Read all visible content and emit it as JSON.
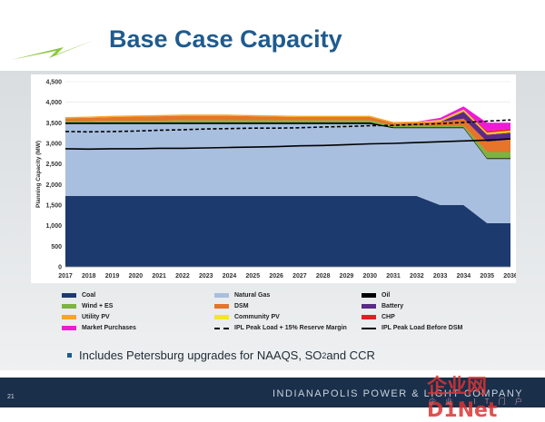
{
  "slide": {
    "title": "Base Case Capacity",
    "bullet": "Includes Petersburg upgrades for NAAQS, SO",
    "bullet_sub": "2",
    "bullet_end": " and CCR",
    "page_number": "21",
    "company": "INDIANAPOLIS POWER & LIGHT COMPANY",
    "logo_icon": "lightning-bolt-icon",
    "logo_mark": "®",
    "watermark": "企业网D1Net",
    "watermark_sub": "企 业 · I T 门 户"
  },
  "chart_data": {
    "type": "area",
    "ylabel": "Planning Capacity (MW)",
    "xlabel": "",
    "ylim": [
      0,
      4500
    ],
    "yticks": [
      0,
      500,
      1000,
      1500,
      2000,
      2500,
      3000,
      3500,
      4000,
      4500
    ],
    "x": [
      "2017",
      "2018",
      "2019",
      "2020",
      "2021",
      "2022",
      "2023",
      "2024",
      "2025",
      "2026",
      "2027",
      "2028",
      "2029",
      "2030",
      "2031",
      "2032",
      "2033",
      "2034",
      "2035",
      "2036"
    ],
    "grid": true,
    "legend_position": "bottom",
    "stack_series": [
      {
        "name": "Coal",
        "color": "#1d3a6e",
        "values": [
          1720,
          1720,
          1720,
          1720,
          1720,
          1720,
          1720,
          1720,
          1720,
          1720,
          1720,
          1720,
          1720,
          1720,
          1720,
          1720,
          1500,
          1500,
          1060,
          1060
        ]
      },
      {
        "name": "Natural Gas",
        "color": "#a9bfdf",
        "values": [
          1750,
          1750,
          1750,
          1750,
          1750,
          1750,
          1750,
          1750,
          1750,
          1750,
          1750,
          1750,
          1750,
          1750,
          1650,
          1650,
          1870,
          1870,
          1560,
          1560
        ]
      },
      {
        "name": "Oil",
        "color": "#000000",
        "values": [
          40,
          40,
          40,
          40,
          40,
          40,
          40,
          40,
          40,
          40,
          40,
          40,
          40,
          40,
          20,
          20,
          20,
          20,
          20,
          20
        ]
      },
      {
        "name": "Wind + ES",
        "color": "#7cb342",
        "values": [
          30,
          30,
          40,
          40,
          40,
          50,
          50,
          50,
          50,
          50,
          50,
          50,
          50,
          50,
          40,
          40,
          40,
          40,
          150,
          150
        ]
      },
      {
        "name": "DSM",
        "color": "#e6742a",
        "values": [
          70,
          80,
          90,
          100,
          110,
          110,
          110,
          110,
          100,
          90,
          80,
          80,
          80,
          80,
          60,
          70,
          90,
          170,
          250,
          300
        ]
      },
      {
        "name": "Battery",
        "color": "#5b2a86",
        "values": [
          0,
          0,
          0,
          0,
          0,
          0,
          0,
          0,
          0,
          0,
          0,
          0,
          0,
          0,
          0,
          0,
          0,
          170,
          170,
          170
        ]
      },
      {
        "name": "Utility PV",
        "color": "#f5a623",
        "values": [
          30,
          30,
          30,
          30,
          30,
          30,
          30,
          30,
          30,
          30,
          30,
          30,
          30,
          30,
          30,
          30,
          30,
          30,
          30,
          30
        ]
      },
      {
        "name": "Community PV",
        "color": "#f5e52a",
        "values": [
          0,
          0,
          0,
          0,
          0,
          0,
          0,
          0,
          0,
          0,
          0,
          0,
          0,
          0,
          0,
          0,
          20,
          20,
          20,
          20
        ]
      },
      {
        "name": "CHP",
        "color": "#e02020",
        "values": [
          0,
          0,
          0,
          0,
          0,
          0,
          0,
          0,
          0,
          0,
          0,
          0,
          0,
          0,
          0,
          0,
          0,
          0,
          40,
          40
        ]
      },
      {
        "name": "Market Purchases",
        "color": "#ee1bd6",
        "values": [
          0,
          0,
          0,
          0,
          0,
          0,
          0,
          0,
          0,
          0,
          0,
          0,
          0,
          0,
          0,
          0,
          50,
          80,
          200,
          150
        ]
      }
    ],
    "line_series": [
      {
        "name": "IPL Peak Load + 15% Reserve Margin",
        "style": "dashed",
        "color": "#000000",
        "values": [
          3290,
          3280,
          3290,
          3300,
          3320,
          3330,
          3350,
          3360,
          3370,
          3370,
          3380,
          3400,
          3410,
          3430,
          3440,
          3460,
          3480,
          3510,
          3540,
          3570
        ]
      },
      {
        "name": "IPL Peak Load Before DSM",
        "style": "solid",
        "color": "#000000",
        "values": [
          2870,
          2860,
          2870,
          2870,
          2880,
          2880,
          2890,
          2900,
          2910,
          2920,
          2940,
          2950,
          2970,
          2990,
          3000,
          3020,
          3040,
          3060,
          3080,
          3110
        ]
      }
    ],
    "legend": [
      {
        "label": "Coal",
        "kind": "swatch",
        "color": "#1d3a6e"
      },
      {
        "label": "Natural Gas",
        "kind": "swatch",
        "color": "#a9bfdf"
      },
      {
        "label": "Oil",
        "kind": "swatch",
        "color": "#000000"
      },
      {
        "label": "Wind + ES",
        "kind": "swatch",
        "color": "#7cb342"
      },
      {
        "label": "DSM",
        "kind": "swatch",
        "color": "#e6742a"
      },
      {
        "label": "Battery",
        "kind": "swatch",
        "color": "#5b2a86"
      },
      {
        "label": "Utility PV",
        "kind": "swatch",
        "color": "#f5a623"
      },
      {
        "label": "Community PV",
        "kind": "swatch",
        "color": "#f5e52a"
      },
      {
        "label": "CHP",
        "kind": "swatch",
        "color": "#e02020"
      },
      {
        "label": "Market Purchases",
        "kind": "swatch",
        "color": "#ee1bd6"
      },
      {
        "label": "IPL Peak Load + 15% Reserve Margin",
        "kind": "dash",
        "color": "#000000"
      },
      {
        "label": "IPL Peak Load Before DSM",
        "kind": "line",
        "color": "#000000"
      }
    ]
  }
}
